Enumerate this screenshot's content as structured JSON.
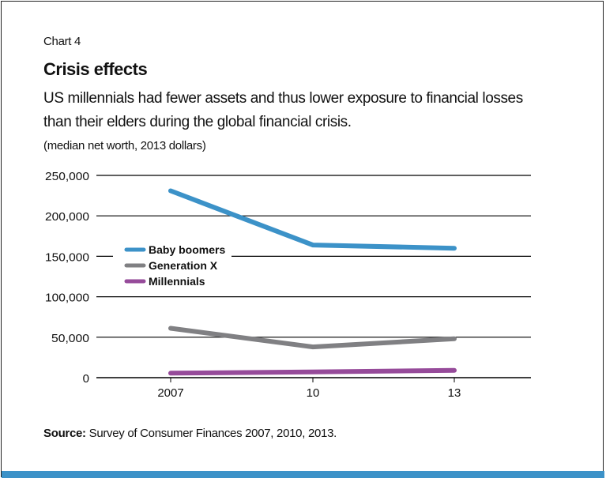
{
  "header": {
    "chart_number": "Chart 4",
    "title": "Crisis effects",
    "subtitle": "US millennials had fewer assets and thus lower exposure to financial losses than their elders during the global financial crisis.",
    "units": "(median net worth, 2013 dollars)"
  },
  "footer": {
    "source_label": "Source:",
    "source_text": " Survey of Consumer Finances 2007, 2010, 2013."
  },
  "colors": {
    "baby_boomers": "#3c92c8",
    "generation_x": "#808083",
    "millennials": "#964b9a",
    "accent_bar": "#3c92c8"
  },
  "chart_data": {
    "type": "line",
    "title": "Crisis effects",
    "subtitle": "US millennials had fewer assets and thus lower exposure to financial losses than their elders during the global financial crisis.",
    "ylabel": "(median net worth, 2013 dollars)",
    "xlabel": "",
    "categories": [
      "2007",
      "10",
      "13"
    ],
    "ylim": [
      0,
      250000
    ],
    "yticks": [
      0,
      50000,
      100000,
      150000,
      200000,
      250000
    ],
    "ytick_labels": [
      "0",
      "50,000",
      "100,000",
      "150,000",
      "200,000",
      "250,000"
    ],
    "grid": true,
    "legend_position": "center-left",
    "series": [
      {
        "name": "Baby boomers",
        "color": "#3c92c8",
        "values": [
          231000,
          164000,
          160000
        ]
      },
      {
        "name": "Generation X",
        "color": "#808083",
        "values": [
          61000,
          38000,
          48000
        ]
      },
      {
        "name": "Millennials",
        "color": "#964b9a",
        "values": [
          5600,
          7000,
          9000
        ]
      }
    ]
  }
}
